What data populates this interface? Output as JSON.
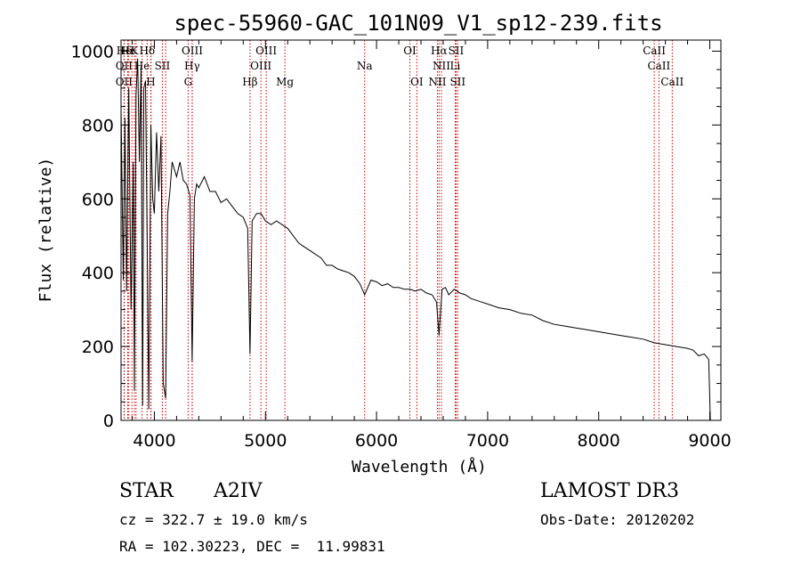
{
  "chart_data": {
    "type": "line",
    "title": "spec-55960-GAC_101N09_V1_sp12-239.fits",
    "xlabel": "Wavelength (Å)",
    "ylabel": "Flux (relative)",
    "xlim": [
      3700,
      9100
    ],
    "ylim": [
      0,
      1030
    ],
    "xticks": [
      4000,
      5000,
      6000,
      7000,
      8000,
      9000
    ],
    "yticks": [
      0,
      200,
      400,
      600,
      800,
      1000
    ],
    "series": [
      {
        "name": "spectrum",
        "x": [
          3700,
          3720,
          3735,
          3750,
          3770,
          3790,
          3800,
          3810,
          3820,
          3835,
          3850,
          3865,
          3880,
          3895,
          3905,
          3920,
          3935,
          3950,
          3968,
          3985,
          4000,
          4020,
          4040,
          4060,
          4080,
          4101,
          4120,
          4140,
          4160,
          4180,
          4200,
          4230,
          4260,
          4290,
          4320,
          4340,
          4360,
          4380,
          4400,
          4450,
          4500,
          4550,
          4600,
          4650,
          4700,
          4750,
          4800,
          4840,
          4861,
          4880,
          4920,
          4960,
          5000,
          5050,
          5100,
          5150,
          5200,
          5250,
          5300,
          5350,
          5400,
          5450,
          5500,
          5550,
          5600,
          5650,
          5700,
          5750,
          5800,
          5850,
          5893,
          5950,
          6000,
          6050,
          6100,
          6150,
          6200,
          6250,
          6300,
          6350,
          6400,
          6450,
          6500,
          6540,
          6563,
          6590,
          6620,
          6650,
          6700,
          6750,
          6800,
          6850,
          6900,
          6950,
          7000,
          7100,
          7200,
          7300,
          7400,
          7500,
          7600,
          7700,
          7800,
          7900,
          8000,
          8100,
          8200,
          8300,
          8400,
          8500,
          8600,
          8700,
          8800,
          8850,
          8900,
          8950,
          8990,
          9000,
          9005
        ],
        "values": [
          850,
          380,
          820,
          350,
          900,
          300,
          480,
          700,
          80,
          880,
          980,
          700,
          960,
          40,
          900,
          920,
          500,
          30,
          800,
          600,
          560,
          780,
          620,
          770,
          100,
          60,
          560,
          620,
          700,
          680,
          660,
          700,
          650,
          640,
          610,
          160,
          600,
          640,
          630,
          660,
          620,
          620,
          590,
          600,
          580,
          560,
          550,
          520,
          180,
          540,
          560,
          560,
          540,
          530,
          540,
          530,
          520,
          500,
          480,
          470,
          460,
          450,
          440,
          420,
          420,
          410,
          405,
          400,
          390,
          370,
          340,
          380,
          375,
          365,
          370,
          360,
          360,
          355,
          355,
          350,
          355,
          345,
          340,
          320,
          230,
          355,
          360,
          340,
          355,
          345,
          340,
          330,
          325,
          320,
          315,
          305,
          300,
          290,
          285,
          270,
          260,
          255,
          250,
          245,
          240,
          235,
          230,
          225,
          220,
          210,
          205,
          200,
          195,
          190,
          175,
          180,
          165,
          60,
          0
        ]
      }
    ],
    "spectral_lines": [
      {
        "label": "Hδ",
        "x": 3729,
        "row": 0
      },
      {
        "label": "Hε",
        "x": 3760,
        "row": 0
      },
      {
        "label": "K",
        "x": 3820,
        "row": 0
      },
      {
        "label": "Hδ",
        "x": 3935,
        "row": 0
      },
      {
        "label": "OIII",
        "x": 4341,
        "row": 0
      },
      {
        "label": "OIII",
        "x": 5007,
        "row": 0
      },
      {
        "label": "OI",
        "x": 6300,
        "row": 0
      },
      {
        "label": "Hα",
        "x": 6563,
        "row": 0
      },
      {
        "label": "SII",
        "x": 6716,
        "row": 0
      },
      {
        "label": "CaII",
        "x": 8500,
        "row": 0
      },
      {
        "label": "OII",
        "x": 3727,
        "row": 1
      },
      {
        "label": "He",
        "x": 3889,
        "row": 1
      },
      {
        "label": "SII",
        "x": 4072,
        "row": 1
      },
      {
        "label": "Hγ",
        "x": 4340,
        "row": 1
      },
      {
        "label": "OIII",
        "x": 4959,
        "row": 1
      },
      {
        "label": "Na",
        "x": 5893,
        "row": 1
      },
      {
        "label": "NII",
        "x": 6584,
        "row": 1
      },
      {
        "label": "Li",
        "x": 6708,
        "row": 1
      },
      {
        "label": "CaII",
        "x": 8542,
        "row": 1
      },
      {
        "label": "OII",
        "x": 3727,
        "row": 2
      },
      {
        "label": "H",
        "x": 3968,
        "row": 2
      },
      {
        "label": "G",
        "x": 4304,
        "row": 2
      },
      {
        "label": "Hβ",
        "x": 4861,
        "row": 2
      },
      {
        "label": "Mg",
        "x": 5175,
        "row": 2
      },
      {
        "label": "OI",
        "x": 6363,
        "row": 2
      },
      {
        "label": "NII",
        "x": 6548,
        "row": 2
      },
      {
        "label": "SII",
        "x": 6731,
        "row": 2
      },
      {
        "label": "CaII",
        "x": 8662,
        "row": 2
      }
    ],
    "extra_lines_x": [
      3770,
      3798,
      3835,
      3889,
      3970,
      4102,
      4341,
      4861,
      5007,
      6563,
      6584,
      6716,
      6731
    ]
  },
  "info": {
    "object_class": "STAR",
    "subclass": "A2IV",
    "survey": "LAMOST DR3",
    "redshift_text": "cz = 322.7 ± 19.0 km/s",
    "obs_date_text": "Obs-Date: 20120202",
    "coords_text": "RA = 102.30223, DEC =  11.99831"
  },
  "colors": {
    "spectrum": "#000000",
    "line_marker": "#cc0000",
    "axis": "#000000"
  }
}
